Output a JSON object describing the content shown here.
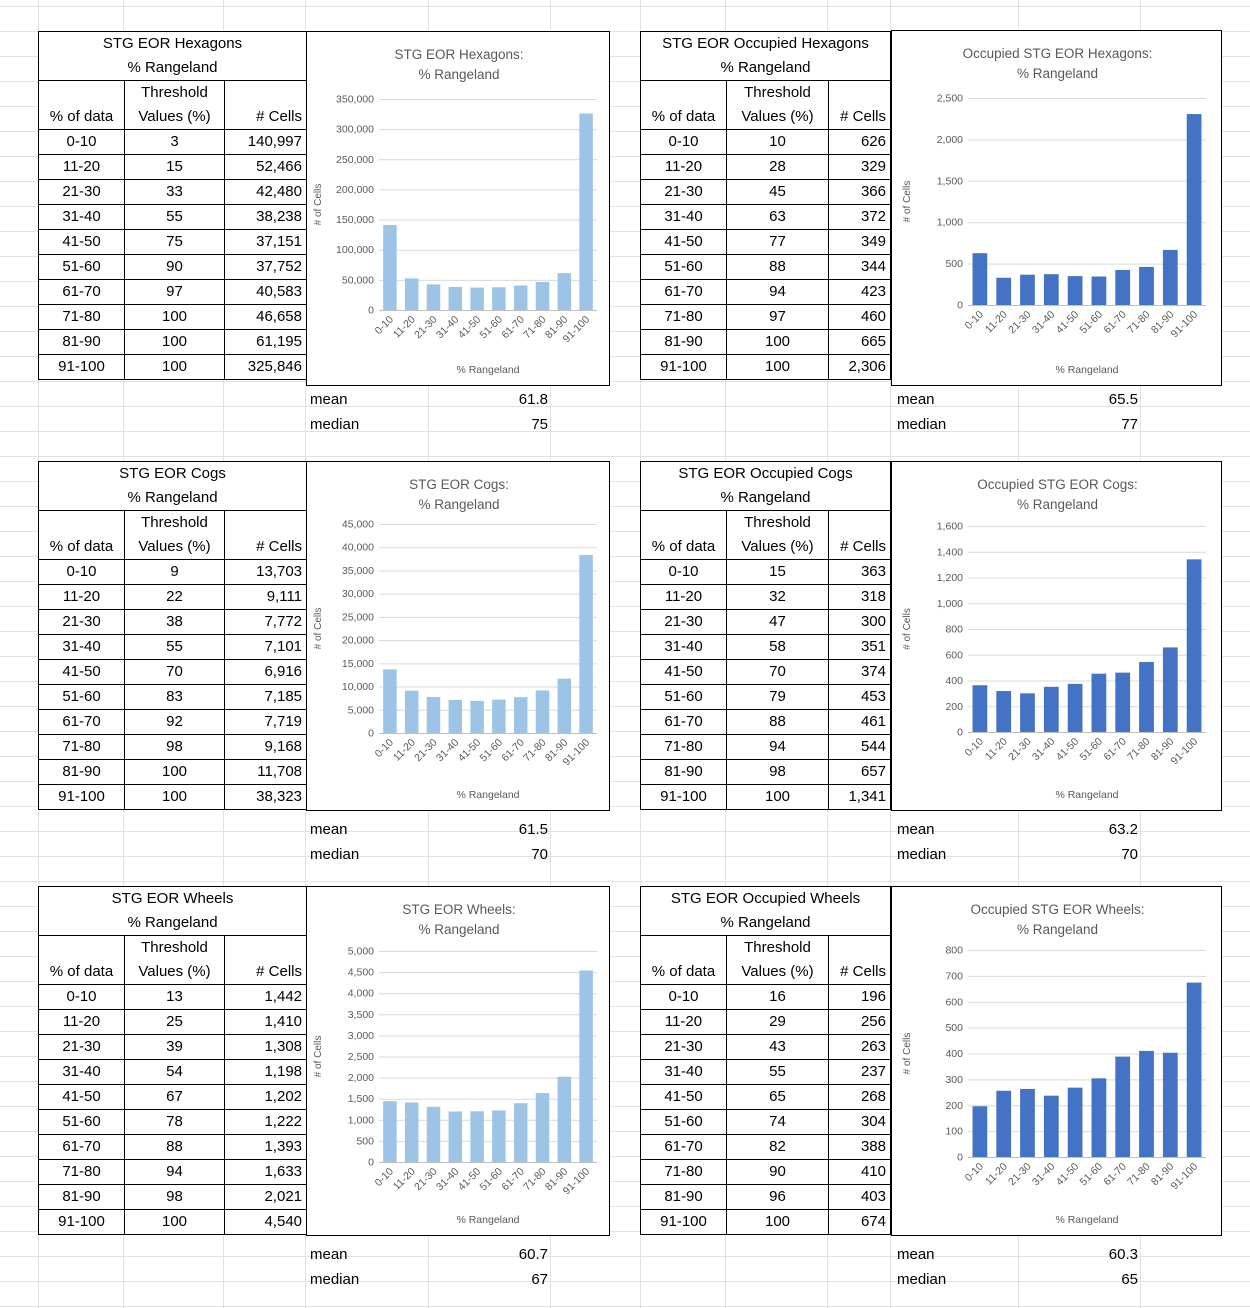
{
  "colors": {
    "light_bar": "#9DC3E6",
    "dark_bar": "#4472C4",
    "gridline": "#d9d9d9",
    "axis_text": "#595959"
  },
  "sections": [
    {
      "left": {
        "title1": "STG EOR Hexagons",
        "title2": "% Rangeland",
        "hdr_pct": "% of data",
        "hdr_thr1": "Threshold",
        "hdr_thr2": "Values (%)",
        "hdr_cells": "# Cells",
        "rows": [
          {
            "p": "0-10",
            "t": "3",
            "c": "140,997"
          },
          {
            "p": "11-20",
            "t": "15",
            "c": "52,466"
          },
          {
            "p": "21-30",
            "t": "33",
            "c": "42,480"
          },
          {
            "p": "31-40",
            "t": "55",
            "c": "38,238"
          },
          {
            "p": "41-50",
            "t": "75",
            "c": "37,151"
          },
          {
            "p": "51-60",
            "t": "90",
            "c": "37,752"
          },
          {
            "p": "61-70",
            "t": "97",
            "c": "40,583"
          },
          {
            "p": "71-80",
            "t": "100",
            "c": "46,658"
          },
          {
            "p": "81-90",
            "t": "100",
            "c": "61,195"
          },
          {
            "p": "91-100",
            "t": "100",
            "c": "325,846"
          }
        ],
        "mean_label": "mean",
        "mean_value": "61.8",
        "median_label": "median",
        "median_value": "75"
      },
      "right": {
        "title1": "STG EOR Occupied Hexagons",
        "title2": "% Rangeland",
        "hdr_pct": "% of data",
        "hdr_thr1": "Threshold",
        "hdr_thr2": "Values (%)",
        "hdr_cells": "# Cells",
        "rows": [
          {
            "p": "0-10",
            "t": "10",
            "c": "626"
          },
          {
            "p": "11-20",
            "t": "28",
            "c": "329"
          },
          {
            "p": "21-30",
            "t": "45",
            "c": "366"
          },
          {
            "p": "31-40",
            "t": "63",
            "c": "372"
          },
          {
            "p": "41-50",
            "t": "77",
            "c": "349"
          },
          {
            "p": "51-60",
            "t": "88",
            "c": "344"
          },
          {
            "p": "61-70",
            "t": "94",
            "c": "423"
          },
          {
            "p": "71-80",
            "t": "97",
            "c": "460"
          },
          {
            "p": "81-90",
            "t": "100",
            "c": "665"
          },
          {
            "p": "91-100",
            "t": "100",
            "c": "2,306"
          }
        ],
        "mean_label": "mean",
        "mean_value": "65.5",
        "median_label": "median",
        "median_value": "77"
      }
    },
    {
      "left": {
        "title1": "STG EOR Cogs",
        "title2": "% Rangeland",
        "hdr_pct": "% of data",
        "hdr_thr1": "Threshold",
        "hdr_thr2": "Values (%)",
        "hdr_cells": "# Cells",
        "rows": [
          {
            "p": "0-10",
            "t": "9",
            "c": "13,703"
          },
          {
            "p": "11-20",
            "t": "22",
            "c": "9,111"
          },
          {
            "p": "21-30",
            "t": "38",
            "c": "7,772"
          },
          {
            "p": "31-40",
            "t": "55",
            "c": "7,101"
          },
          {
            "p": "41-50",
            "t": "70",
            "c": "6,916"
          },
          {
            "p": "51-60",
            "t": "83",
            "c": "7,185"
          },
          {
            "p": "61-70",
            "t": "92",
            "c": "7,719"
          },
          {
            "p": "71-80",
            "t": "98",
            "c": "9,168"
          },
          {
            "p": "81-90",
            "t": "100",
            "c": "11,708"
          },
          {
            "p": "91-100",
            "t": "100",
            "c": "38,323"
          }
        ],
        "mean_label": "mean",
        "mean_value": "61.5",
        "median_label": "median",
        "median_value": "70"
      },
      "right": {
        "title1": "STG EOR Occupied Cogs",
        "title2": "% Rangeland",
        "hdr_pct": "% of data",
        "hdr_thr1": "Threshold",
        "hdr_thr2": "Values (%)",
        "hdr_cells": "# Cells",
        "rows": [
          {
            "p": "0-10",
            "t": "15",
            "c": "363"
          },
          {
            "p": "11-20",
            "t": "32",
            "c": "318"
          },
          {
            "p": "21-30",
            "t": "47",
            "c": "300"
          },
          {
            "p": "31-40",
            "t": "58",
            "c": "351"
          },
          {
            "p": "41-50",
            "t": "70",
            "c": "374"
          },
          {
            "p": "51-60",
            "t": "79",
            "c": "453"
          },
          {
            "p": "61-70",
            "t": "88",
            "c": "461"
          },
          {
            "p": "71-80",
            "t": "94",
            "c": "544"
          },
          {
            "p": "81-90",
            "t": "98",
            "c": "657"
          },
          {
            "p": "91-100",
            "t": "100",
            "c": "1,341"
          }
        ],
        "mean_label": "mean",
        "mean_value": "63.2",
        "median_label": "median",
        "median_value": "70"
      }
    },
    {
      "left": {
        "title1": "STG EOR Wheels",
        "title2": "% Rangeland",
        "hdr_pct": "% of data",
        "hdr_thr1": "Threshold",
        "hdr_thr2": "Values (%)",
        "hdr_cells": "# Cells",
        "rows": [
          {
            "p": "0-10",
            "t": "13",
            "c": "1,442"
          },
          {
            "p": "11-20",
            "t": "25",
            "c": "1,410"
          },
          {
            "p": "21-30",
            "t": "39",
            "c": "1,308"
          },
          {
            "p": "31-40",
            "t": "54",
            "c": "1,198"
          },
          {
            "p": "41-50",
            "t": "67",
            "c": "1,202"
          },
          {
            "p": "51-60",
            "t": "78",
            "c": "1,222"
          },
          {
            "p": "61-70",
            "t": "88",
            "c": "1,393"
          },
          {
            "p": "71-80",
            "t": "94",
            "c": "1,633"
          },
          {
            "p": "81-90",
            "t": "98",
            "c": "2,021"
          },
          {
            "p": "91-100",
            "t": "100",
            "c": "4,540"
          }
        ],
        "mean_label": "mean",
        "mean_value": "60.7",
        "median_label": "median",
        "median_value": "67"
      },
      "right": {
        "title1": "STG EOR Occupied Wheels",
        "title2": "% Rangeland",
        "hdr_pct": "% of data",
        "hdr_thr1": "Threshold",
        "hdr_thr2": "Values (%)",
        "hdr_cells": "# Cells",
        "rows": [
          {
            "p": "0-10",
            "t": "16",
            "c": "196"
          },
          {
            "p": "11-20",
            "t": "29",
            "c": "256"
          },
          {
            "p": "21-30",
            "t": "43",
            "c": "263"
          },
          {
            "p": "31-40",
            "t": "55",
            "c": "237"
          },
          {
            "p": "41-50",
            "t": "65",
            "c": "268"
          },
          {
            "p": "51-60",
            "t": "74",
            "c": "304"
          },
          {
            "p": "61-70",
            "t": "82",
            "c": "388"
          },
          {
            "p": "71-80",
            "t": "90",
            "c": "410"
          },
          {
            "p": "81-90",
            "t": "96",
            "c": "403"
          },
          {
            "p": "91-100",
            "t": "100",
            "c": "674"
          }
        ],
        "mean_label": "mean",
        "mean_value": "60.3",
        "median_label": "median",
        "median_value": "65"
      }
    }
  ],
  "chart_data": [
    {
      "type": "bar",
      "title": "STG EOR Hexagons:\n% Rangeland",
      "xlabel": "% Rangeland",
      "ylabel": "# of Cells",
      "color": "#9DC3E6",
      "categories": [
        "0-10",
        "11-20",
        "21-30",
        "31-40",
        "41-50",
        "51-60",
        "61-70",
        "71-80",
        "81-90",
        "91-100"
      ],
      "values": [
        140997,
        52466,
        42480,
        38238,
        37151,
        37752,
        40583,
        46658,
        61195,
        325846
      ],
      "ylim": [
        0,
        350000
      ],
      "yticks": [
        "0",
        "50,000",
        "100,000",
        "150,000",
        "200,000",
        "250,000",
        "300,000",
        "350,000"
      ]
    },
    {
      "type": "bar",
      "title": "Occupied STG EOR Hexagons:\n% Rangeland",
      "xlabel": "% Rangeland",
      "ylabel": "# of Cells",
      "color": "#4472C4",
      "categories": [
        "0-10",
        "11-20",
        "21-30",
        "31-40",
        "41-50",
        "51-60",
        "61-70",
        "71-80",
        "81-90",
        "91-100"
      ],
      "values": [
        626,
        329,
        366,
        372,
        349,
        344,
        423,
        460,
        665,
        2306
      ],
      "ylim": [
        0,
        2500
      ],
      "yticks": [
        "0",
        "500",
        "1,000",
        "1,500",
        "2,000",
        "2,500"
      ]
    },
    {
      "type": "bar",
      "title": "STG EOR Cogs:\n% Rangeland",
      "xlabel": "% Rangeland",
      "ylabel": "# of Cells",
      "color": "#9DC3E6",
      "categories": [
        "0-10",
        "11-20",
        "21-30",
        "31-40",
        "41-50",
        "51-60",
        "61-70",
        "71-80",
        "81-90",
        "91-100"
      ],
      "values": [
        13703,
        9111,
        7772,
        7101,
        6916,
        7185,
        7719,
        9168,
        11708,
        38323
      ],
      "ylim": [
        0,
        45000
      ],
      "yticks": [
        "0",
        "5,000",
        "10,000",
        "15,000",
        "20,000",
        "25,000",
        "30,000",
        "35,000",
        "40,000",
        "45,000"
      ]
    },
    {
      "type": "bar",
      "title": "Occupied STG EOR Cogs:\n% Rangeland",
      "xlabel": "% Rangeland",
      "ylabel": "# of Cells",
      "color": "#4472C4",
      "categories": [
        "0-10",
        "11-20",
        "21-30",
        "31-40",
        "41-50",
        "51-60",
        "61-70",
        "71-80",
        "81-90",
        "91-100"
      ],
      "values": [
        363,
        318,
        300,
        351,
        374,
        453,
        461,
        544,
        657,
        1341
      ],
      "ylim": [
        0,
        1600
      ],
      "yticks": [
        "0",
        "200",
        "400",
        "600",
        "800",
        "1,000",
        "1,200",
        "1,400",
        "1,600"
      ]
    },
    {
      "type": "bar",
      "title": "STG EOR Wheels:\n% Rangeland",
      "xlabel": "% Rangeland",
      "ylabel": "# of Cells",
      "color": "#9DC3E6",
      "categories": [
        "0-10",
        "11-20",
        "21-30",
        "31-40",
        "41-50",
        "51-60",
        "61-70",
        "71-80",
        "81-90",
        "91-100"
      ],
      "values": [
        1442,
        1410,
        1308,
        1198,
        1202,
        1222,
        1393,
        1633,
        2021,
        4540
      ],
      "ylim": [
        0,
        5000
      ],
      "yticks": [
        "0",
        "500",
        "1,000",
        "1,500",
        "2,000",
        "2,500",
        "3,000",
        "3,500",
        "4,000",
        "4,500",
        "5,000"
      ]
    },
    {
      "type": "bar",
      "title": "Occupied STG EOR Wheels:\n% Rangeland",
      "xlabel": "% Rangeland",
      "ylabel": "# of Cells",
      "color": "#4472C4",
      "categories": [
        "0-10",
        "11-20",
        "21-30",
        "31-40",
        "41-50",
        "51-60",
        "61-70",
        "71-80",
        "81-90",
        "91-100"
      ],
      "values": [
        196,
        256,
        263,
        237,
        268,
        304,
        388,
        410,
        403,
        674
      ],
      "ylim": [
        0,
        800
      ],
      "yticks": [
        "0",
        "100",
        "200",
        "300",
        "400",
        "500",
        "600",
        "700",
        "800"
      ]
    }
  ]
}
